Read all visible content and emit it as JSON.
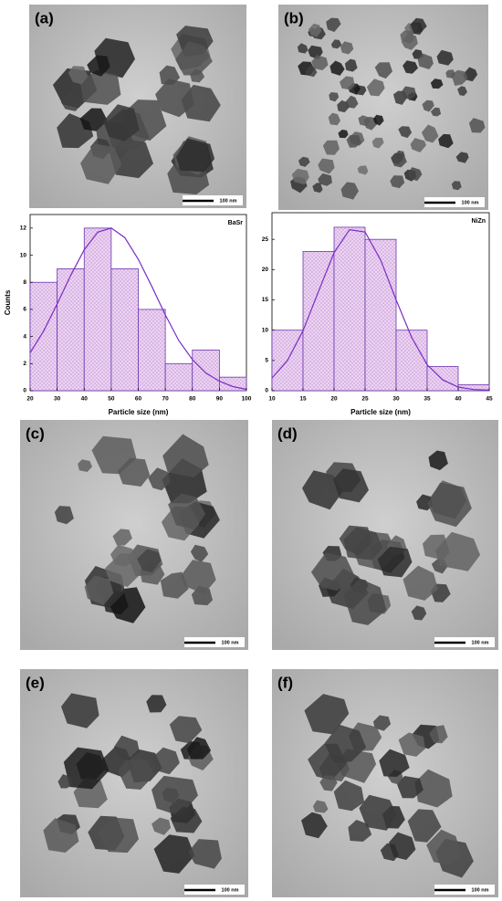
{
  "panels": [
    {
      "label": "(a)",
      "scale_bar": "100 nm"
    },
    {
      "label": "(b)",
      "scale_bar": "100 nm"
    },
    {
      "label": "(c)",
      "scale_bar": "100 nm"
    },
    {
      "label": "(d)",
      "scale_bar": "100 nm"
    },
    {
      "label": "(e)",
      "scale_bar": "100 nm"
    },
    {
      "label": "(f)",
      "scale_bar": "100 nm"
    }
  ],
  "chart_data": [
    {
      "type": "histogram",
      "annotation": "BaSr",
      "x_label": "Particle size (nm)",
      "y_label": "Counts",
      "bins": [
        20,
        30,
        40,
        50,
        60,
        70,
        80,
        90,
        100
      ],
      "values": [
        8,
        9,
        12,
        9,
        6,
        2,
        3,
        1
      ],
      "color": "#e6c6ee",
      "edge_color": "#6b36b0",
      "fit": {
        "color": "#7a2cc4",
        "x": [
          20,
          25,
          30,
          35,
          40,
          45,
          50,
          55,
          60,
          65,
          70,
          75,
          80,
          85,
          90,
          95,
          100
        ],
        "values": [
          2.8,
          4.4,
          6.4,
          8.5,
          10.4,
          11.7,
          12.0,
          11.3,
          9.7,
          7.7,
          5.6,
          3.7,
          2.3,
          1.3,
          0.7,
          0.3,
          0.1
        ]
      },
      "xlim": [
        20,
        100
      ],
      "xticks": [
        20,
        30,
        40,
        50,
        60,
        70,
        80,
        90,
        100
      ],
      "ylim": [
        0,
        13
      ],
      "yticks": [
        0,
        2,
        4,
        6,
        8,
        10,
        12
      ]
    },
    {
      "type": "histogram",
      "annotation": "NiZn",
      "x_label": "Particle size (nm)",
      "bins": [
        10,
        15,
        20,
        25,
        30,
        35,
        40,
        45
      ],
      "values": [
        10,
        23,
        27,
        25,
        10,
        4,
        1
      ],
      "color": "#e6c6ee",
      "edge_color": "#6b36b0",
      "fit": {
        "color": "#7a2cc4",
        "x": [
          10,
          12.5,
          15,
          17.5,
          20,
          22.5,
          25,
          27.5,
          30,
          32.5,
          35,
          37.5,
          40,
          42.5,
          45
        ],
        "values": [
          2.1,
          5.0,
          9.9,
          16.4,
          22.8,
          26.6,
          26.2,
          21.6,
          15.0,
          8.8,
          4.3,
          1.8,
          0.6,
          0.2,
          0.1
        ]
      },
      "xlim": [
        10,
        45
      ],
      "xticks": [
        10,
        15,
        20,
        25,
        30,
        35,
        40,
        45
      ],
      "ylim": [
        0,
        29.4
      ],
      "yticks": [
        0,
        5,
        10,
        15,
        20,
        25
      ]
    }
  ]
}
